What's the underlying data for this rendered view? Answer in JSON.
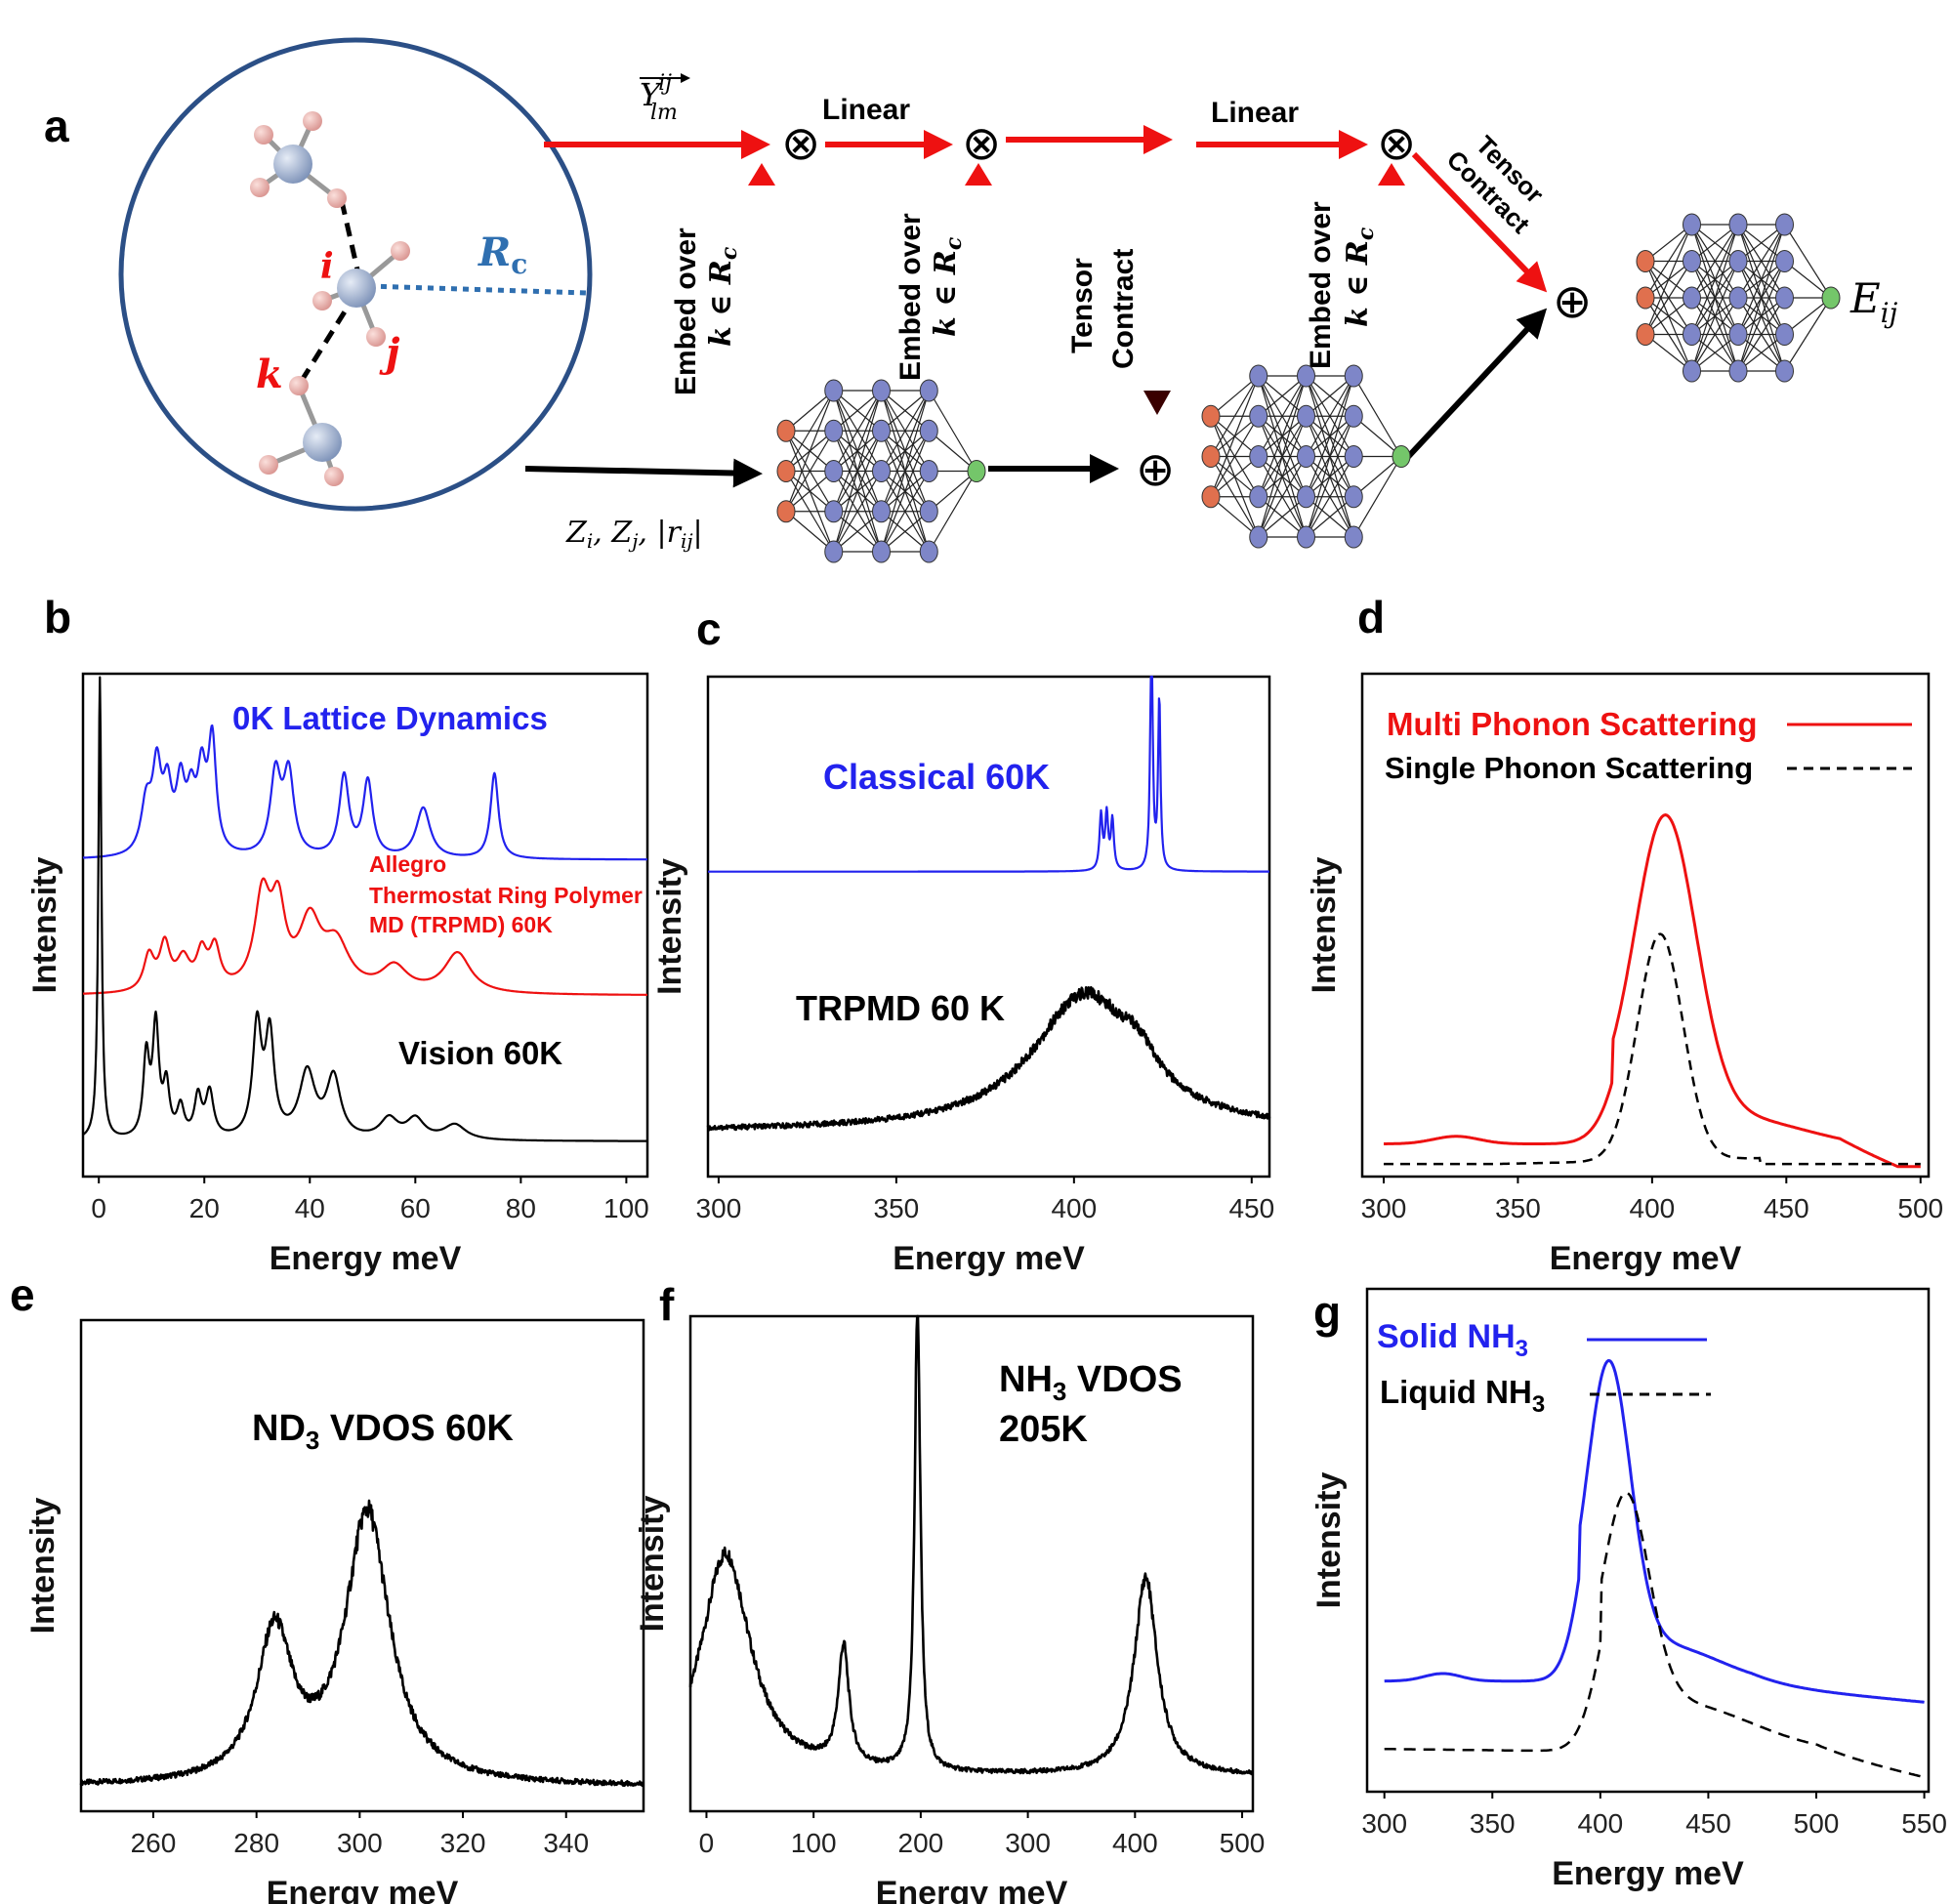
{
  "panels": {
    "a": {
      "label": "a",
      "sym_ylm": "Y",
      "sym_ylm_sup": "ij",
      "sym_ylm_sub": "lm",
      "inputs": "Z_i, Z_j, |r_ij|",
      "inputs_zi": "Z",
      "inputs_i": "i",
      "inputs_zj": "Z",
      "inputs_j": "j",
      "inputs_r": "r",
      "inputs_rij": "ij",
      "rc_main": "R",
      "rc_sub": "c",
      "atom_i": "i",
      "atom_j": "j",
      "atom_k": "k",
      "linear1": "Linear",
      "linear2": "Linear",
      "embed1_line1": "Embed over",
      "embed1_line2": "k ∈ R",
      "embed1_sub": "c",
      "embed2_line1": "Embed over",
      "embed2_line2": "k ∈ R",
      "embed2_sub": "c",
      "embed3_line1": "Embed over",
      "embed3_line2": "k ∈ R",
      "embed3_sub": "c",
      "tensor_line1": "Tensor",
      "tensor_line2": "Contract",
      "tensor2_line1": "Tensor",
      "tensor2_line2": "Contract",
      "otimes": "⊗",
      "oplus": "⊕",
      "eij": "E",
      "eij_sub": "ij"
    },
    "b": {
      "label": "b"
    },
    "c": {
      "label": "c"
    },
    "d": {
      "label": "d"
    },
    "e": {
      "label": "e"
    },
    "f": {
      "label": "f"
    },
    "g": {
      "label": "g"
    }
  },
  "colors": {
    "red": "#ee1111",
    "blue": "#2222ee",
    "black": "#000000",
    "darkred": "#6a0000",
    "circle": "#2b4f86"
  },
  "chart_data": [
    {
      "panel": "b",
      "type": "line",
      "xlabel": "Energy meV",
      "ylabel": "Intensity",
      "xlim": [
        -3,
        104
      ],
      "xticks": [
        0,
        20,
        40,
        60,
        80,
        100
      ],
      "series": [
        {
          "name": "0K Lattice Dynamics",
          "color": "#2222ee",
          "baseline": 0.63,
          "peaks": [
            [
              9,
              0.1,
              1.2
            ],
            [
              11,
              0.16,
              1.0
            ],
            [
              13,
              0.12,
              1.0
            ],
            [
              15.5,
              0.13,
              1.0
            ],
            [
              17.5,
              0.1,
              1.0
            ],
            [
              19.5,
              0.15,
              1.0
            ],
            [
              21.5,
              0.22,
              0.9
            ],
            [
              33.5,
              0.16,
              1.2
            ],
            [
              36,
              0.16,
              1.2
            ],
            [
              46.5,
              0.16,
              1.1
            ],
            [
              51,
              0.15,
              1.1
            ],
            [
              61.5,
              0.1,
              1.6
            ],
            [
              75,
              0.17,
              0.9
            ]
          ]
        },
        {
          "name": "Allegro Thermostat Ring Polymer MD (TRPMD) 60K",
          "color": "#ee1111",
          "baseline": 0.36,
          "peaks": [
            [
              9.5,
              0.07,
              1.2
            ],
            [
              12.5,
              0.09,
              1.2
            ],
            [
              16,
              0.06,
              1.5
            ],
            [
              19.5,
              0.07,
              1.2
            ],
            [
              22,
              0.08,
              1.2
            ],
            [
              31,
              0.18,
              1.8
            ],
            [
              34,
              0.15,
              1.6
            ],
            [
              40,
              0.13,
              2.5
            ],
            [
              45,
              0.09,
              3
            ],
            [
              56,
              0.05,
              3
            ],
            [
              68,
              0.08,
              3
            ]
          ]
        },
        {
          "name": "Vision 60K",
          "color": "#000000",
          "baseline": 0.07,
          "peaks": [
            [
              0.2,
              0.92,
              0.35
            ],
            [
              9,
              0.16,
              0.7
            ],
            [
              10.8,
              0.22,
              0.7
            ],
            [
              12.8,
              0.1,
              0.7
            ],
            [
              15.5,
              0.06,
              0.8
            ],
            [
              18.8,
              0.08,
              0.8
            ],
            [
              21,
              0.09,
              0.9
            ],
            [
              30,
              0.22,
              1.0
            ],
            [
              32.4,
              0.2,
              1.0
            ],
            [
              39.5,
              0.13,
              1.8
            ],
            [
              44.5,
              0.12,
              1.6
            ],
            [
              55,
              0.04,
              2
            ],
            [
              60,
              0.04,
              2
            ],
            [
              67.5,
              0.03,
              2.5
            ]
          ]
        }
      ],
      "labels": [
        "0K Lattice Dynamics",
        "Allegro",
        "Thermostat Ring Polymer",
        "MD (TRPMD) 60K",
        "Vision 60K"
      ]
    },
    {
      "panel": "c",
      "type": "line",
      "xlabel": "Energy meV",
      "ylabel": "Intensity",
      "xlim": [
        297,
        455
      ],
      "xticks": [
        300,
        350,
        400,
        450
      ],
      "series": [
        {
          "name": "Classical 60K",
          "color": "#2222ee",
          "baseline": 0.61,
          "peaks": [
            [
              407.6,
              0.11,
              0.5
            ],
            [
              409.2,
              0.11,
              0.5
            ],
            [
              410.8,
              0.1,
              0.5
            ],
            [
              421.8,
              0.5,
              0.4
            ],
            [
              424,
              0.34,
              0.4
            ]
          ]
        },
        {
          "name": "TRPMD 60 K",
          "color": "#000000",
          "baseline": 0.09,
          "noise": 0.012,
          "peaks": [
            [
              403,
              0.27,
              18
            ],
            [
              418,
              0.05,
              6
            ]
          ]
        }
      ],
      "labels": [
        "Classical 60K",
        "TRPMD 60 K"
      ]
    },
    {
      "panel": "d",
      "type": "line",
      "xlabel": "Energy meV",
      "ylabel": "Intensity",
      "xlim": [
        292,
        503
      ],
      "xticks": [
        300,
        350,
        400,
        450,
        500
      ],
      "series": [
        {
          "name": "Multi Phonon Scattering",
          "color": "#ee1111",
          "dash": false
        },
        {
          "name": "Single Phonon Scattering",
          "color": "#000000",
          "dash": true
        }
      ],
      "legend": "top"
    },
    {
      "panel": "e",
      "type": "line",
      "title": "ND3 VDOS 60K",
      "title_main": "ND",
      "title_sub": "3",
      "title_rest": " VDOS 60K",
      "xlabel": "Energy meV",
      "ylabel": "Intensity",
      "xlim": [
        246,
        355
      ],
      "xticks": [
        260,
        280,
        300,
        320,
        340
      ],
      "series": [
        {
          "name": "ND3 VDOS 60K",
          "color": "#000000",
          "baseline": 0.05,
          "noise": 0.012,
          "peaks": [
            [
              283.5,
              0.3,
              4.2
            ],
            [
              301.5,
              0.55,
              5.2
            ]
          ]
        }
      ]
    },
    {
      "panel": "f",
      "type": "line",
      "title": "NH3 VDOS 205K",
      "title_main": "NH",
      "title_sub": "3",
      "title_rest": " VDOS",
      "title_line2": "205K",
      "xlabel": "Energy meV",
      "ylabel": "Intensity",
      "xlim": [
        -15,
        510
      ],
      "xticks": [
        0,
        100,
        200,
        300,
        400,
        500
      ],
      "series": [
        {
          "name": "NH3 VDOS 205K",
          "color": "#000000",
          "baseline": 0.07,
          "noise": 0.01,
          "peaks": [
            [
              18,
              0.45,
              28
            ],
            [
              128,
              0.24,
              6
            ],
            [
              197,
              0.95,
              3.2
            ],
            [
              410,
              0.4,
              13
            ]
          ]
        }
      ]
    },
    {
      "panel": "g",
      "type": "line",
      "xlabel": "Energy meV",
      "ylabel": "Intensity",
      "xlim": [
        292,
        552
      ],
      "xticks": [
        300,
        350,
        400,
        450,
        500,
        550
      ],
      "series": [
        {
          "name": "Solid NH3",
          "name_main": "Solid NH",
          "name_sub": "3",
          "color": "#2222ee",
          "dash": false
        },
        {
          "name": "Liquid NH3",
          "name_main": "Liquid NH",
          "name_sub": "3",
          "color": "#000000",
          "dash": true
        }
      ],
      "legend": "top-left"
    }
  ]
}
